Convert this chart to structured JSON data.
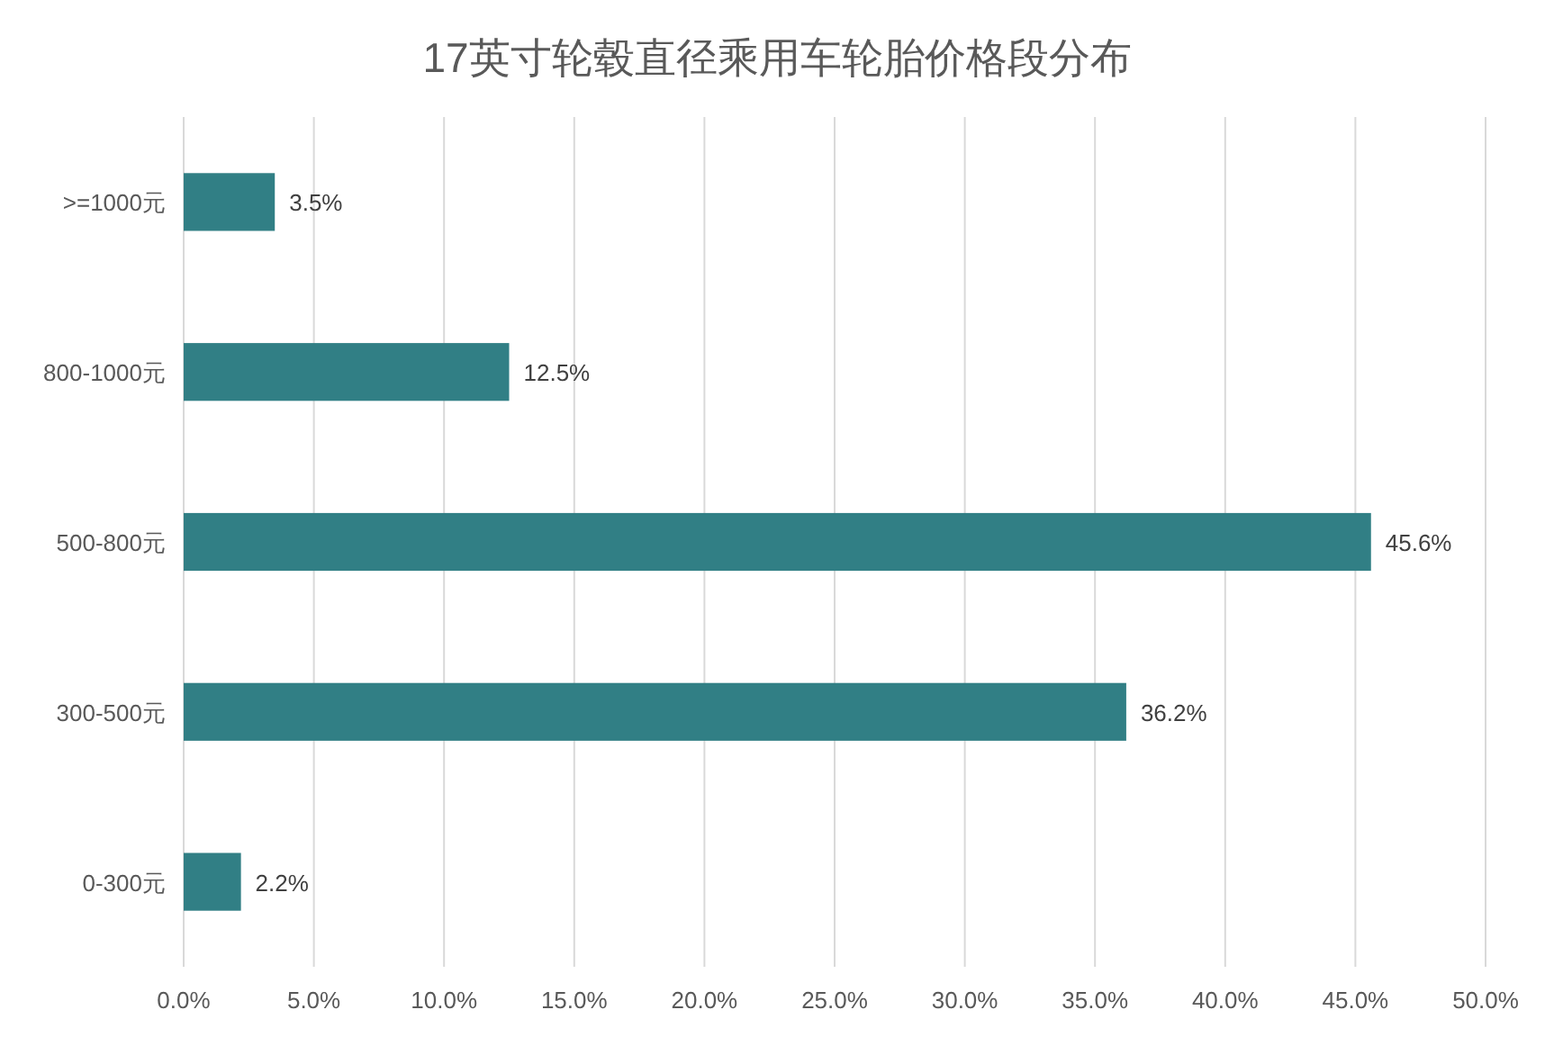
{
  "chart_data": {
    "type": "bar",
    "orientation": "horizontal",
    "title": "17英寸轮毂直径乘用车轮胎价格段分布",
    "categories": [
      ">=1000元",
      "800-1000元",
      "500-800元",
      "300-500元",
      "0-300元"
    ],
    "values": [
      3.5,
      12.5,
      45.6,
      36.2,
      2.2
    ],
    "value_labels": [
      "3.5%",
      "12.5%",
      "45.6%",
      "36.2%",
      "2.2%"
    ],
    "color": "#317f85",
    "xlim": [
      0,
      50
    ],
    "xticks": [
      {
        "value": 0,
        "label": "0.0%"
      },
      {
        "value": 5,
        "label": "5.0%"
      },
      {
        "value": 10,
        "label": "10.0%"
      },
      {
        "value": 15,
        "label": "15.0%"
      },
      {
        "value": 20,
        "label": "20.0%"
      },
      {
        "value": 25,
        "label": "25.0%"
      },
      {
        "value": 30,
        "label": "30.0%"
      },
      {
        "value": 35,
        "label": "35.0%"
      },
      {
        "value": 40,
        "label": "40.0%"
      },
      {
        "value": 45,
        "label": "45.0%"
      },
      {
        "value": 50,
        "label": "50.0%"
      }
    ],
    "grid": "x"
  }
}
